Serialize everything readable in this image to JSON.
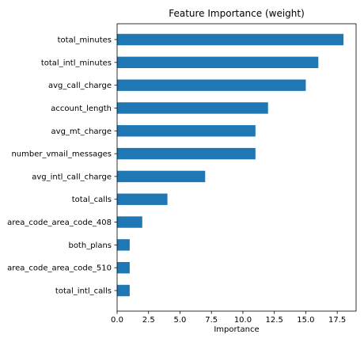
{
  "chart_data": {
    "type": "bar",
    "orientation": "horizontal",
    "title": "Feature Importance (weight)",
    "xlabel": "Importance",
    "ylabel": "",
    "xlim": [
      0,
      19
    ],
    "x_ticks": [
      0.0,
      2.5,
      5.0,
      7.5,
      10.0,
      12.5,
      15.0,
      17.5
    ],
    "x_tick_labels": [
      "0.0",
      "2.5",
      "5.0",
      "7.5",
      "10.0",
      "12.5",
      "15.0",
      "17.5"
    ],
    "grid": false,
    "legend": "none",
    "bar_color": "#1f77b4",
    "categories": [
      "total_minutes",
      "total_intl_minutes",
      "avg_call_charge",
      "account_length",
      "avg_mt_charge",
      "number_vmail_messages",
      "avg_intl_call_charge",
      "total_calls",
      "area_code_area_code_408",
      "both_plans",
      "area_code_area_code_510",
      "total_intl_calls"
    ],
    "values": [
      18,
      16,
      15,
      12,
      11,
      11,
      7,
      4,
      2,
      1,
      1,
      1
    ]
  }
}
